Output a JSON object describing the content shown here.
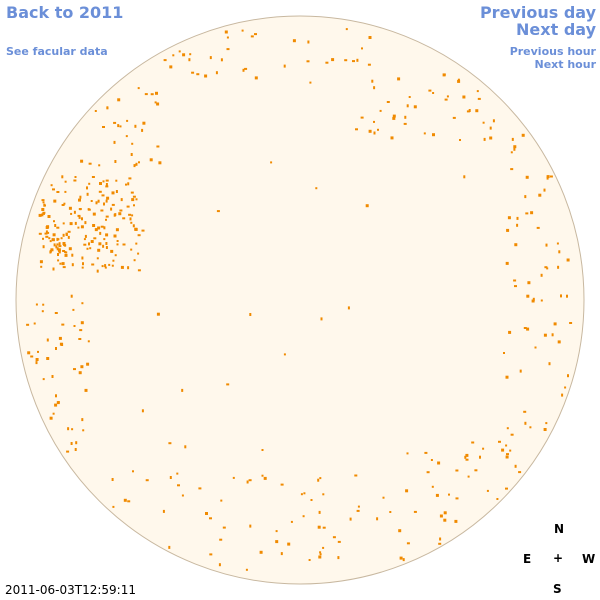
{
  "nav": {
    "back": "Back to 2011",
    "facular": "See facular data",
    "prev_day": "Previous day",
    "next_day": "Next day",
    "prev_hour": "Previous hour",
    "next_hour": "Next hour"
  },
  "compass": {
    "n": "N",
    "e": "E",
    "w": "W",
    "s": "S",
    "center": "+"
  },
  "timestamp": "2011-06-03T12:59:11",
  "colors": {
    "disk": "#fff8ec",
    "limb": "#c8b8a0",
    "points": "#f08a00",
    "link": "#6b8fd8"
  }
}
